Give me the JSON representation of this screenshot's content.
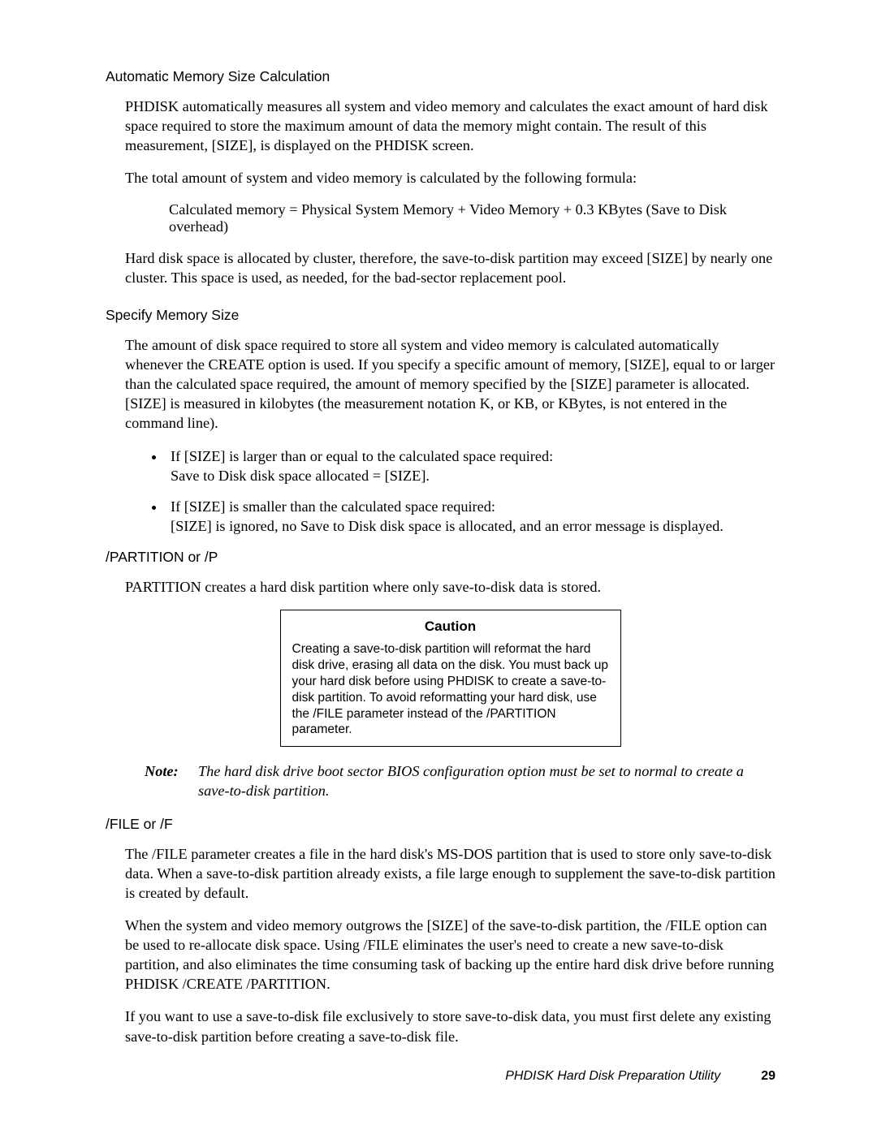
{
  "sections": {
    "auto_calc": {
      "heading": "Automatic Memory Size Calculation",
      "p1": "PHDISK automatically measures all system and video memory and calculates the exact amount of hard disk space required to store the maximum amount of data the memory might contain. The result of this measurement, [SIZE], is displayed on the PHDISK screen.",
      "p2": "The total amount of system and video memory is calculated by the following formula:",
      "formula": "Calculated memory = Physical System Memory + Video Memory + 0.3 KBytes (Save to Disk overhead)",
      "p3": "Hard disk space is allocated by cluster, therefore, the save-to-disk partition may exceed [SIZE] by nearly one cluster. This space is used, as needed, for the bad-sector replacement pool."
    },
    "specify": {
      "heading": "Specify Memory Size",
      "p1": "The amount of disk space required to store all system and video memory is calculated automatically whenever the CREATE option is used. If you specify a specific amount of memory, [SIZE], equal to or larger than the calculated space required, the amount of memory specified by the [SIZE] parameter is allocated. [SIZE] is measured in kilobytes (the measurement notation K, or KB, or KBytes, is not entered in the command line).",
      "b1a": "If [SIZE] is larger than or equal to the calculated space required:",
      "b1b": "Save to Disk disk space allocated = [SIZE].",
      "b2a": "If [SIZE] is smaller than the calculated space required:",
      "b2b": "[SIZE] is ignored, no Save to Disk disk space is allocated, and an error message is displayed."
    },
    "partition": {
      "heading": "/PARTITION or /P",
      "p1": "PARTITION creates a hard disk partition where only save-to-disk data is stored.",
      "caution_title": "Caution",
      "caution_body": "Creating a save-to-disk partition will reformat the hard disk drive, erasing all data on the disk. You must back up your hard disk before using PHDISK to create a save-to-disk partition. To avoid reformatting your hard disk, use the /FILE parameter instead of the /PARTITION parameter.",
      "note_label": "Note:",
      "note_text": "The hard disk drive boot sector BIOS configuration option must be set to normal to create a save-to-disk partition."
    },
    "file": {
      "heading": "/FILE or /F",
      "p1": "The /FILE parameter creates a file in the hard disk's MS-DOS partition that is used to store only save-to-disk data.  When a save-to-disk partition already exists, a file large enough to supplement the save-to-disk partition is created by default.",
      "p2": "When the system and video memory outgrows the [SIZE] of the save-to-disk partition, the /FILE option can be used to re-allocate disk space. Using /FILE eliminates the user's need to create a new save-to-disk partition, and also eliminates the time consuming task of backing up the entire hard disk drive before running PHDISK /CREATE /PARTITION.",
      "p3": "If you want to use a save-to-disk file exclusively to store save-to-disk data, you must first delete any existing save-to-disk partition before creating a save-to-disk file."
    }
  },
  "footer": {
    "title": "PHDISK Hard Disk Preparation Utility",
    "page": "29"
  }
}
